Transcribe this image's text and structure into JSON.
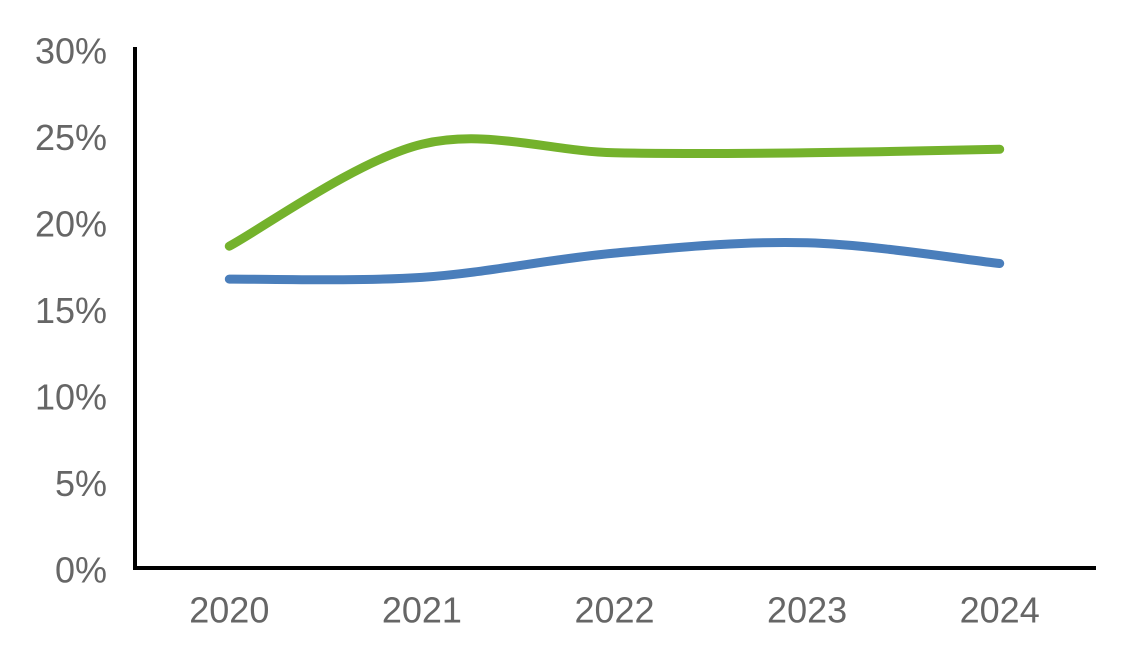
{
  "chart_data": {
    "type": "line",
    "title": "",
    "xlabel": "",
    "ylabel": "",
    "categories": [
      "2020",
      "2021",
      "2022",
      "2023",
      "2024"
    ],
    "series": [
      {
        "name": "green",
        "color": "#74B22C",
        "values": [
          18.6,
          24.5,
          24.0,
          24.0,
          24.2
        ]
      },
      {
        "name": "blue",
        "color": "#4A7EBB",
        "values": [
          16.7,
          16.8,
          18.2,
          18.8,
          17.6
        ]
      }
    ],
    "ylim": [
      0,
      30
    ],
    "y_tick_step": 5,
    "y_tick_labels": [
      "0%",
      "5%",
      "10%",
      "15%",
      "20%",
      "25%",
      "30%"
    ],
    "grid": false,
    "legend": "none",
    "smooth": true,
    "line_width": 9,
    "axis_color": "#000000",
    "tick_label_color": "#666666"
  }
}
